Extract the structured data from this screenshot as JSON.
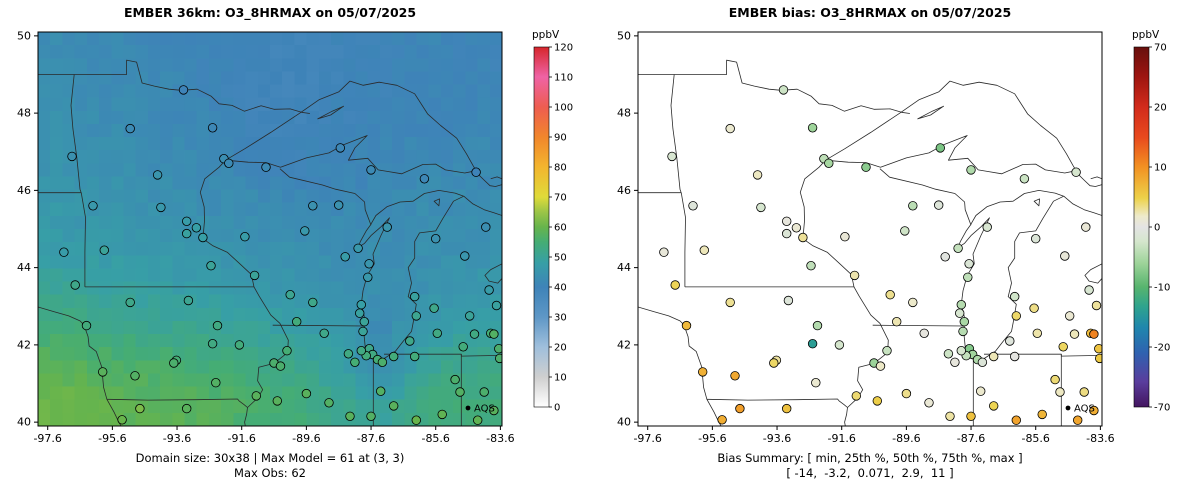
{
  "page": {
    "background": "#ffffff"
  },
  "chart_data": {
    "layout": "two map panels side by side, shared axes and station locations",
    "charts": [
      {
        "type": "heatmap",
        "id": "model",
        "title": "EMBER 36km: O3_8HRMAX on 05/07/2025",
        "caption_lines": [
          "Domain size: 30x38 | Max Model = 61 at (3, 3)",
          "Max Obs: 62"
        ],
        "legend_label": "AQS",
        "xlabel": "",
        "ylabel": "",
        "xlim": [
          -97.9,
          -83.55
        ],
        "ylim": [
          39.9,
          50.1
        ],
        "x_ticks": [
          -97.6,
          -95.6,
          -93.6,
          -91.6,
          -89.6,
          -87.6,
          -85.6,
          -83.6
        ],
        "y_ticks": [
          40,
          42,
          44,
          46,
          48,
          50
        ],
        "grid": false,
        "colorbar": {
          "label": "ppbV",
          "min": 0,
          "max": 120,
          "ticks": [
            0,
            10,
            20,
            30,
            40,
            50,
            60,
            70,
            80,
            90,
            100,
            110,
            120
          ],
          "stops": [
            [
              0,
              "#ffffff"
            ],
            [
              10,
              "#cfcfcf"
            ],
            [
              20,
              "#9fbfdc"
            ],
            [
              30,
              "#5e97c6"
            ],
            [
              40,
              "#3e83b8"
            ],
            [
              48,
              "#379fa6"
            ],
            [
              55,
              "#45ad74"
            ],
            [
              60,
              "#67b44c"
            ],
            [
              65,
              "#9cc547"
            ],
            [
              70,
              "#dfdb3a"
            ],
            [
              80,
              "#f3b52e"
            ],
            [
              90,
              "#f1862c"
            ],
            [
              100,
              "#ee5d50"
            ],
            [
              110,
              "#ef63a5"
            ],
            [
              120,
              "#d6262b"
            ]
          ]
        },
        "raster": {
          "units": "ppbV",
          "lon_range": [
            -97.9,
            -83.55
          ],
          "lat_range": [
            39.9,
            50.1
          ],
          "ncols": 38,
          "nrows": 30,
          "max_value": 61,
          "max_cell": "(3, 3)",
          "coarse_grid_note": "approximate gridded O3 values read from map colors; rows north(50N) to south(40N), cols lon -97.3..-84.3",
          "coarse_values": [
            [
              43,
              42,
              42,
              41,
              41,
              40,
              40,
              39,
              39,
              40,
              40,
              41,
              41,
              40
            ],
            [
              43,
              43,
              42,
              42,
              41,
              40,
              39,
              39,
              39,
              40,
              40,
              40,
              41,
              41
            ],
            [
              44,
              43,
              43,
              42,
              42,
              41,
              40,
              39,
              40,
              40,
              41,
              41,
              41,
              42
            ],
            [
              45,
              44,
              44,
              43,
              43,
              42,
              41,
              40,
              40,
              41,
              41,
              42,
              42,
              42
            ],
            [
              46,
              45,
              45,
              44,
              44,
              43,
              43,
              42,
              42,
              42,
              42,
              43,
              43,
              43
            ],
            [
              47,
              47,
              46,
              46,
              45,
              45,
              44,
              44,
              43,
              43,
              43,
              43,
              44,
              44
            ],
            [
              50,
              49,
              49,
              48,
              47,
              47,
              46,
              45,
              45,
              44,
              44,
              44,
              45,
              46
            ],
            [
              54,
              53,
              52,
              51,
              51,
              50,
              49,
              48,
              47,
              45,
              42,
              46,
              47,
              48
            ],
            [
              58,
              57,
              56,
              56,
              55,
              54,
              53,
              52,
              50,
              47,
              42,
              48,
              51,
              52
            ],
            [
              61,
              60,
              59,
              58,
              58,
              57,
              56,
              55,
              53,
              51,
              49,
              52,
              54,
              54
            ]
          ]
        }
      },
      {
        "type": "scatter",
        "id": "bias",
        "title": "EMBER bias: O3_8HRMAX on 05/07/2025",
        "caption_lines": [
          "Bias Summary: [ min, 25th %, 50th %, 75th %, max ]",
          "[ -14,  -3.2,  0.071,  2.9,  11 ]"
        ],
        "legend_label": "AQS",
        "xlabel": "",
        "ylabel": "",
        "xlim": [
          -97.9,
          -83.55
        ],
        "ylim": [
          39.9,
          50.1
        ],
        "x_ticks": [
          -97.6,
          -95.6,
          -93.6,
          -91.6,
          -89.6,
          -87.6,
          -85.6,
          -83.6
        ],
        "y_ticks": [
          40,
          42,
          44,
          46,
          48,
          50
        ],
        "grid": false,
        "bias_summary": {
          "min": -14,
          "q25": -3.2,
          "median": 0.071,
          "q75": 2.9,
          "max": 11
        },
        "colorbar": {
          "label": "ppbV",
          "ticks": [
            70,
            20,
            10,
            0,
            -10,
            -20,
            -70
          ],
          "scale_note": "nonlinear diverging scale; the 7 tick values are evenly spaced along the bar",
          "gradient": [
            [
              0,
              "#67100d"
            ],
            [
              0.08,
              "#9c1510"
            ],
            [
              0.167,
              "#d22b1c"
            ],
            [
              0.25,
              "#e8491e"
            ],
            [
              0.333,
              "#f29122"
            ],
            [
              0.42,
              "#edd24a"
            ],
            [
              0.47,
              "#edeacb"
            ],
            [
              0.5,
              "#e4e4e4"
            ],
            [
              0.54,
              "#d5e6cd"
            ],
            [
              0.6,
              "#9ed49a"
            ],
            [
              0.667,
              "#57b46e"
            ],
            [
              0.72,
              "#2fa48d"
            ],
            [
              0.78,
              "#1f86ad"
            ],
            [
              0.85,
              "#2f62b0"
            ],
            [
              0.93,
              "#5a3d9d"
            ],
            [
              1,
              "#43155f"
            ]
          ]
        }
      }
    ],
    "shared_stations": {
      "note": "AQS monitor sites plotted on both panels; obs colors left panel, bias colors right panel (approximate values read from dot colors)",
      "fields": [
        "lon",
        "lat",
        "obs_ppbv",
        "bias_ppbv"
      ],
      "rows": [
        [
          -96.85,
          46.88,
          44,
          -2.0
        ],
        [
          -95.05,
          47.6,
          42,
          1.5
        ],
        [
          -93.4,
          48.6,
          40,
          -3.0
        ],
        [
          -92.5,
          47.62,
          41,
          -6.0
        ],
        [
          -92.15,
          46.82,
          43,
          -4.0
        ],
        [
          -94.2,
          46.4,
          45,
          2.0
        ],
        [
          -94.1,
          45.56,
          46,
          -2.2
        ],
        [
          -93.3,
          45.2,
          47,
          0.5
        ],
        [
          -93.0,
          45.03,
          48,
          1.2
        ],
        [
          -93.3,
          44.88,
          49,
          -1.5
        ],
        [
          -92.8,
          44.78,
          48,
          3.0
        ],
        [
          -92.55,
          44.05,
          50,
          -3.8
        ],
        [
          -95.85,
          44.45,
          50,
          2.2
        ],
        [
          -96.2,
          45.6,
          46,
          -1.0
        ],
        [
          -97.1,
          44.4,
          47,
          0.8
        ],
        [
          -96.75,
          43.55,
          52,
          4.5
        ],
        [
          -96.4,
          42.5,
          54,
          6.8
        ],
        [
          -92.0,
          46.7,
          42,
          -5.5
        ],
        [
          -90.85,
          46.6,
          42,
          -7.0
        ],
        [
          -91.5,
          44.8,
          47,
          1.0
        ],
        [
          -91.2,
          43.8,
          50,
          2.5
        ],
        [
          -89.65,
          44.95,
          46,
          -2.8
        ],
        [
          -89.4,
          45.6,
          44,
          -4.2
        ],
        [
          -88.6,
          45.62,
          44,
          -1.2
        ],
        [
          -88.0,
          44.5,
          46,
          -3.5
        ],
        [
          -88.4,
          44.28,
          47,
          -0.5
        ],
        [
          -87.1,
          45.05,
          45,
          -2.0
        ],
        [
          -89.4,
          43.1,
          52,
          1.8
        ],
        [
          -90.1,
          43.3,
          51,
          3.2
        ],
        [
          -87.9,
          43.04,
          48,
          -4.5
        ],
        [
          -87.95,
          42.82,
          49,
          -2.1
        ],
        [
          -87.81,
          42.6,
          50,
          -5.2
        ],
        [
          -87.7,
          43.75,
          46,
          -3.9
        ],
        [
          -87.66,
          44.1,
          45,
          -1.6
        ],
        [
          -89.9,
          42.6,
          54,
          2.4
        ],
        [
          -88.55,
          47.1,
          41,
          -8.0
        ],
        [
          -87.6,
          46.53,
          42,
          -4.8
        ],
        [
          -85.95,
          46.3,
          41,
          -3.1
        ],
        [
          -84.35,
          46.47,
          40,
          -2.3
        ],
        [
          -85.6,
          44.75,
          44,
          -1.4
        ],
        [
          -84.7,
          44.3,
          45,
          0.9
        ],
        [
          -84.05,
          45.05,
          43,
          1.0
        ],
        [
          -85.65,
          42.95,
          52,
          3.4
        ],
        [
          -86.25,
          43.25,
          49,
          -2.7
        ],
        [
          -86.2,
          42.75,
          51,
          4.1
        ],
        [
          -85.55,
          42.3,
          53,
          2.6
        ],
        [
          -84.55,
          42.75,
          50,
          1.3
        ],
        [
          -83.72,
          43.02,
          49,
          2.9
        ],
        [
          -83.95,
          43.42,
          47,
          -1.9
        ],
        [
          -86.4,
          42.1,
          52,
          -0.8
        ],
        [
          -84.75,
          41.95,
          54,
          4.3
        ],
        [
          -84.4,
          42.28,
          53,
          2.2
        ],
        [
          -83.9,
          42.3,
          55,
          6.5
        ],
        [
          -83.8,
          42.28,
          57,
          11.0
        ],
        [
          -83.65,
          41.9,
          56,
          5.9
        ],
        [
          -83.62,
          41.65,
          56,
          5.4
        ],
        [
          -95.05,
          43.1,
          52,
          3.1
        ],
        [
          -93.25,
          43.15,
          51,
          -1.1
        ],
        [
          -92.35,
          42.5,
          53,
          -4.6
        ],
        [
          -92.5,
          42.03,
          53,
          -14.0
        ],
        [
          -91.67,
          42.0,
          54,
          -2.4
        ],
        [
          -90.6,
          41.53,
          56,
          -6.1
        ],
        [
          -90.2,
          41.85,
          55,
          -3.3
        ],
        [
          -93.62,
          41.6,
          55,
          2.8
        ],
        [
          -93.7,
          41.53,
          56,
          4.2
        ],
        [
          -95.9,
          41.3,
          58,
          7.5
        ],
        [
          -94.9,
          41.2,
          57,
          8.2
        ],
        [
          -92.4,
          41.02,
          57,
          1.4
        ],
        [
          -91.15,
          40.68,
          58,
          3.9
        ],
        [
          -94.75,
          40.35,
          62,
          9.0
        ],
        [
          -95.3,
          40.06,
          60,
          7.8
        ],
        [
          -93.3,
          40.35,
          58,
          6.1
        ],
        [
          -89.05,
          42.3,
          52,
          0.4
        ],
        [
          -90.4,
          41.45,
          56,
          1.9
        ],
        [
          -88.3,
          41.77,
          53,
          -2.9
        ],
        [
          -87.85,
          42.35,
          50,
          -4.4
        ],
        [
          -87.65,
          41.9,
          52,
          -7.4
        ],
        [
          -87.55,
          41.75,
          53,
          -5.8
        ],
        [
          -87.75,
          41.72,
          54,
          -3.6
        ],
        [
          -87.9,
          41.85,
          53,
          -2.2
        ],
        [
          -88.1,
          41.55,
          55,
          0.6
        ],
        [
          -89.6,
          40.74,
          58,
          3.3
        ],
        [
          -90.5,
          40.55,
          58,
          5.1
        ],
        [
          -88.9,
          40.5,
          57,
          1.1
        ],
        [
          -88.25,
          40.15,
          58,
          2.7
        ],
        [
          -87.6,
          40.15,
          57,
          6.2
        ],
        [
          -87.4,
          41.62,
          55,
          -4.9
        ],
        [
          -87.25,
          41.55,
          56,
          -1.3
        ],
        [
          -86.9,
          41.7,
          54,
          2.3
        ],
        [
          -86.25,
          41.7,
          54,
          0.2
        ],
        [
          -85.0,
          41.1,
          56,
          3.8
        ],
        [
          -86.9,
          40.42,
          58,
          4.6
        ],
        [
          -86.2,
          40.05,
          60,
          8.6
        ],
        [
          -85.4,
          40.2,
          59,
          7.1
        ],
        [
          -84.85,
          40.78,
          57,
          2.0
        ],
        [
          -87.3,
          40.8,
          57,
          1.6
        ],
        [
          -84.1,
          40.78,
          56,
          3.5
        ],
        [
          -84.3,
          40.05,
          59,
          8.4
        ],
        [
          -83.8,
          40.3,
          58,
          7.7
        ]
      ]
    }
  }
}
